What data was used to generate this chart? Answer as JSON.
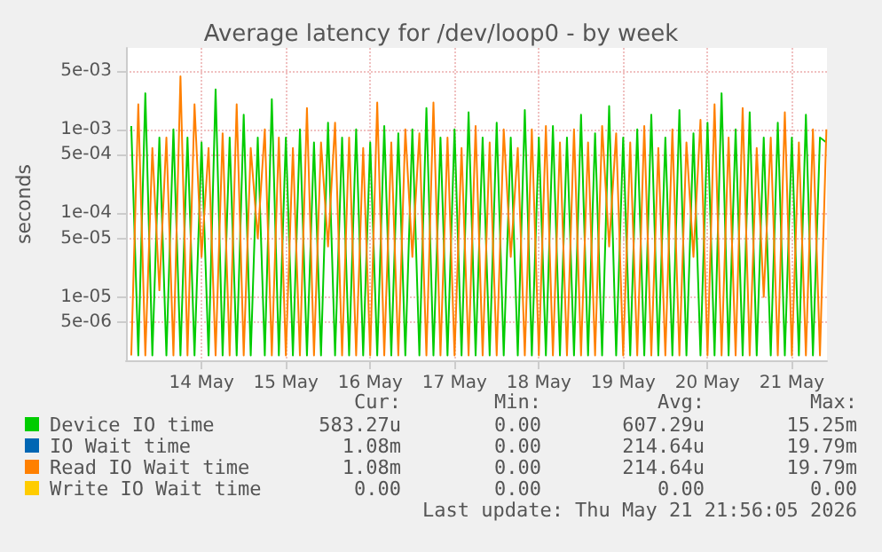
{
  "chart_data": {
    "type": "line",
    "title": "Average latency for /dev/loop0 - by week",
    "ylabel": "seconds",
    "log": "y",
    "grid": true,
    "legend": "bottom left",
    "marker": "none",
    "line_style": "solid",
    "xlim": [
      "2026-05-13T14:30",
      "2026-05-21T22:00"
    ],
    "xticks": [
      {
        "value": "2026-05-14T12:00",
        "label": "14 May"
      },
      {
        "value": "2026-05-15T12:00",
        "label": "15 May"
      },
      {
        "value": "2026-05-16T12:00",
        "label": "16 May"
      },
      {
        "value": "2026-05-17T12:00",
        "label": "17 May"
      },
      {
        "value": "2026-05-18T12:00",
        "label": "18 May"
      },
      {
        "value": "2026-05-19T12:00",
        "label": "19 May"
      },
      {
        "value": "2026-05-20T12:00",
        "label": "20 May"
      },
      {
        "value": "2026-05-21T12:00",
        "label": "21 May"
      }
    ],
    "ylim": [
      1.75e-06,
      0.0094
    ],
    "yticks": [
      {
        "value": 5e-06,
        "label": "5e-06"
      },
      {
        "value": 1e-05,
        "label": "1e-05"
      },
      {
        "value": 5e-05,
        "label": "5e-05"
      },
      {
        "value": 0.0001,
        "label": "1e-04"
      },
      {
        "value": 0.0005,
        "label": "5e-04"
      },
      {
        "value": 0.001,
        "label": "1e-03"
      },
      {
        "value": 0.005,
        "label": "5e-03"
      }
    ],
    "x": [
      "2026-05-13T16:00",
      "2026-05-13T18:00",
      "2026-05-13T20:00",
      "2026-05-13T22:00",
      "2026-05-14T00:00",
      "2026-05-14T02:00",
      "2026-05-14T04:00",
      "2026-05-14T06:00",
      "2026-05-14T08:00",
      "2026-05-14T10:00",
      "2026-05-14T12:00",
      "2026-05-14T14:00",
      "2026-05-14T16:00",
      "2026-05-14T18:00",
      "2026-05-14T20:00",
      "2026-05-14T22:00",
      "2026-05-15T00:00",
      "2026-05-15T02:00",
      "2026-05-15T04:00",
      "2026-05-15T06:00",
      "2026-05-15T08:00",
      "2026-05-15T10:00",
      "2026-05-15T12:00",
      "2026-05-15T14:00",
      "2026-05-15T16:00",
      "2026-05-15T18:00",
      "2026-05-15T20:00",
      "2026-05-15T22:00",
      "2026-05-16T00:00",
      "2026-05-16T02:00",
      "2026-05-16T04:00",
      "2026-05-16T06:00",
      "2026-05-16T08:00",
      "2026-05-16T10:00",
      "2026-05-16T12:00",
      "2026-05-16T14:00",
      "2026-05-16T16:00",
      "2026-05-16T18:00",
      "2026-05-16T20:00",
      "2026-05-16T22:00",
      "2026-05-17T00:00",
      "2026-05-17T02:00",
      "2026-05-17T04:00",
      "2026-05-17T06:00",
      "2026-05-17T08:00",
      "2026-05-17T10:00",
      "2026-05-17T12:00",
      "2026-05-17T14:00",
      "2026-05-17T16:00",
      "2026-05-17T18:00",
      "2026-05-17T20:00",
      "2026-05-17T22:00",
      "2026-05-18T00:00",
      "2026-05-18T02:00",
      "2026-05-18T04:00",
      "2026-05-18T06:00",
      "2026-05-18T08:00",
      "2026-05-18T10:00",
      "2026-05-18T12:00",
      "2026-05-18T14:00",
      "2026-05-18T16:00",
      "2026-05-18T18:00",
      "2026-05-18T20:00",
      "2026-05-18T22:00",
      "2026-05-19T00:00",
      "2026-05-19T02:00",
      "2026-05-19T04:00",
      "2026-05-19T06:00",
      "2026-05-19T08:00",
      "2026-05-19T10:00",
      "2026-05-19T12:00",
      "2026-05-19T14:00",
      "2026-05-19T16:00",
      "2026-05-19T18:00",
      "2026-05-19T20:00",
      "2026-05-19T22:00",
      "2026-05-20T00:00",
      "2026-05-20T02:00",
      "2026-05-20T04:00",
      "2026-05-20T06:00",
      "2026-05-20T08:00",
      "2026-05-20T10:00",
      "2026-05-20T12:00",
      "2026-05-20T14:00",
      "2026-05-20T16:00",
      "2026-05-20T18:00",
      "2026-05-20T20:00",
      "2026-05-20T22:00",
      "2026-05-21T00:00",
      "2026-05-21T02:00",
      "2026-05-21T04:00",
      "2026-05-21T06:00",
      "2026-05-21T08:00",
      "2026-05-21T10:00",
      "2026-05-21T12:00",
      "2026-05-21T14:00",
      "2026-05-21T16:00",
      "2026-05-21T18:00",
      "2026-05-21T20:00",
      "2026-05-21T21:50"
    ],
    "series": [
      {
        "name": "Device IO time",
        "color": "#00cc00",
        "values": [
          0.0011,
          2e-06,
          0.0027,
          2e-06,
          0.0008,
          2e-06,
          0.001,
          2e-06,
          0.0008,
          2e-06,
          0.0007,
          2e-06,
          0.003,
          2e-06,
          0.0008,
          2e-06,
          0.0015,
          2e-06,
          0.0008,
          2e-06,
          0.0023,
          2e-06,
          0.0008,
          2e-06,
          0.001,
          2e-06,
          0.0007,
          2e-06,
          0.0012,
          2e-06,
          0.0008,
          2e-06,
          0.001,
          2e-06,
          0.0007,
          2e-06,
          0.0011,
          2e-06,
          0.0009,
          2e-06,
          0.001,
          2e-06,
          0.0018,
          2e-06,
          0.0008,
          2e-06,
          0.001,
          2e-06,
          0.0016,
          2e-06,
          0.0008,
          2e-06,
          0.0012,
          2e-06,
          0.0008,
          2e-06,
          0.0017,
          2e-06,
          0.0008,
          2e-06,
          0.0011,
          2e-06,
          0.0008,
          2e-06,
          0.0015,
          2e-06,
          0.0009,
          2e-06,
          0.0019,
          2e-06,
          0.0008,
          2e-06,
          0.001,
          2e-06,
          0.0015,
          2e-06,
          0.0008,
          2e-06,
          0.0017,
          2e-06,
          0.0009,
          2e-06,
          0.0012,
          2e-06,
          0.0027,
          2e-06,
          0.001,
          2e-06,
          0.0016,
          2e-06,
          0.0008,
          2e-06,
          0.0012,
          2e-06,
          0.0008,
          2e-06,
          0.0015,
          2e-06,
          0.0008,
          0.0007
        ]
      },
      {
        "name": "IO Wait time",
        "color": "#0066b3",
        "values": [
          null,
          null,
          null,
          null,
          null,
          null,
          null,
          null,
          null,
          null,
          null,
          null,
          null,
          null,
          null,
          null,
          null,
          null,
          null,
          null,
          null,
          null,
          null,
          null,
          null,
          null,
          null,
          null,
          null,
          null,
          null,
          null,
          null,
          null,
          null,
          null,
          null,
          null,
          null,
          null,
          null,
          null,
          null,
          null,
          null,
          null,
          null,
          null,
          null,
          null,
          null,
          null,
          null,
          null,
          null,
          null,
          null,
          null,
          null,
          null,
          null,
          null,
          null,
          null,
          null,
          null,
          null,
          null,
          null,
          null,
          null,
          null,
          null,
          null,
          null,
          null,
          null,
          null,
          null,
          null,
          null,
          null,
          null,
          null,
          null,
          null,
          null,
          null,
          null,
          null,
          null,
          null,
          null,
          null,
          null,
          null,
          null,
          null,
          null,
          null
        ]
      },
      {
        "name": "Read IO Wait time",
        "color": "#ff8000",
        "values": [
          2e-06,
          0.002,
          2e-06,
          0.0006,
          1.2e-05,
          0.0008,
          2e-06,
          0.0043,
          2e-06,
          0.002,
          3e-05,
          0.0006,
          2e-06,
          0.0009,
          2e-06,
          0.002,
          2e-06,
          0.0006,
          5e-05,
          0.001,
          2e-06,
          0.0008,
          2e-06,
          0.0006,
          2e-06,
          0.0018,
          2e-06,
          0.0007,
          4e-05,
          0.0012,
          2e-06,
          0.0008,
          2e-06,
          0.0006,
          2e-06,
          0.0021,
          2e-06,
          0.0007,
          2e-06,
          0.001,
          3e-05,
          0.0009,
          2e-06,
          0.0021,
          2e-06,
          0.0008,
          2e-06,
          0.0006,
          2e-06,
          0.0011,
          2e-06,
          0.0007,
          2e-06,
          0.001,
          3e-05,
          0.0006,
          2e-06,
          0.001,
          2e-06,
          0.0011,
          2e-06,
          0.0007,
          2e-06,
          0.001,
          2e-06,
          0.0007,
          2e-06,
          0.0011,
          4e-05,
          0.0009,
          2e-06,
          0.0007,
          2e-06,
          0.0011,
          2e-06,
          0.0006,
          2e-06,
          0.001,
          2e-06,
          0.0007,
          3e-05,
          0.0013,
          2e-06,
          0.002,
          2e-06,
          0.0008,
          2e-06,
          0.0018,
          2e-06,
          0.0006,
          1e-05,
          0.0008,
          2e-06,
          0.0016,
          2e-06,
          0.0007,
          2e-06,
          0.001,
          2e-06,
          0.001
        ]
      },
      {
        "name": "Write IO Wait time",
        "color": "#ffcc00",
        "values": [
          null,
          null,
          null,
          null,
          null,
          null,
          null,
          null,
          null,
          null,
          null,
          null,
          null,
          null,
          null,
          null,
          null,
          null,
          null,
          null,
          null,
          null,
          null,
          null,
          null,
          null,
          null,
          null,
          null,
          null,
          null,
          null,
          null,
          null,
          null,
          null,
          null,
          null,
          null,
          null,
          null,
          null,
          null,
          null,
          null,
          null,
          null,
          null,
          null,
          null,
          null,
          null,
          null,
          null,
          null,
          null,
          null,
          null,
          null,
          null,
          null,
          null,
          null,
          null,
          null,
          null,
          null,
          null,
          null,
          null,
          null,
          null,
          null,
          null,
          null,
          null,
          null,
          null,
          null,
          null,
          null,
          null,
          null,
          null,
          null,
          null,
          null,
          null,
          null,
          null,
          null,
          null,
          null,
          null,
          null,
          null,
          null,
          null,
          null,
          null
        ]
      }
    ],
    "annotations": [
      "Cur:",
      "Min:",
      "Avg:",
      "Max:",
      "583.27u",
      "0.00",
      "607.29u",
      "15.25m",
      "1.08m",
      "0.00",
      "214.64u",
      "19.79m",
      "1.08m",
      "0.00",
      "214.64u",
      "19.79m",
      "0.00",
      "0.00",
      "0.00",
      "0.00",
      "Last update: Thu May 21 21:56:05 2026"
    ]
  }
}
